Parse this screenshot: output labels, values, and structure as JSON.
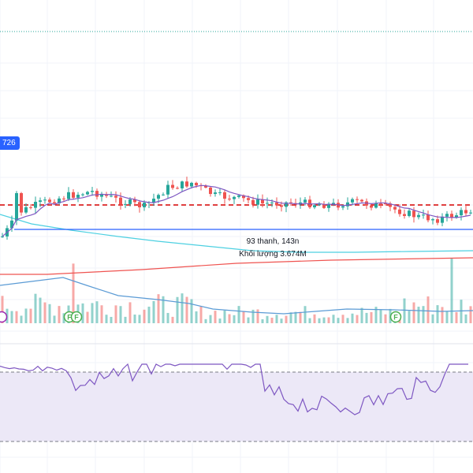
{
  "price_tag": {
    "text": "726",
    "color": "#2962ff"
  },
  "tooltip": {
    "line1": "93 thanh, 143n",
    "line2": "Khối lượng 3.674M"
  },
  "markers": [
    {
      "kind": "dividend",
      "label": "",
      "color": "#9c27b0"
    },
    {
      "kind": "financial",
      "label": "F",
      "color": "#4caf50"
    },
    {
      "kind": "financial",
      "label": "F",
      "color": "#4caf50"
    },
    {
      "kind": "financial",
      "label": "F",
      "color": "#4caf50"
    }
  ],
  "colors": {
    "up": "#26a69a",
    "down": "#ef5350",
    "ma_short": "#7e57c2",
    "ma_mid": "#4dd0e1",
    "ma_long": "#ef5350",
    "hline": "#2962ff",
    "volume_ma": "#5b9bd5",
    "rsi_line": "#7e57c2",
    "rsi_band": "#ece8f7"
  }
}
